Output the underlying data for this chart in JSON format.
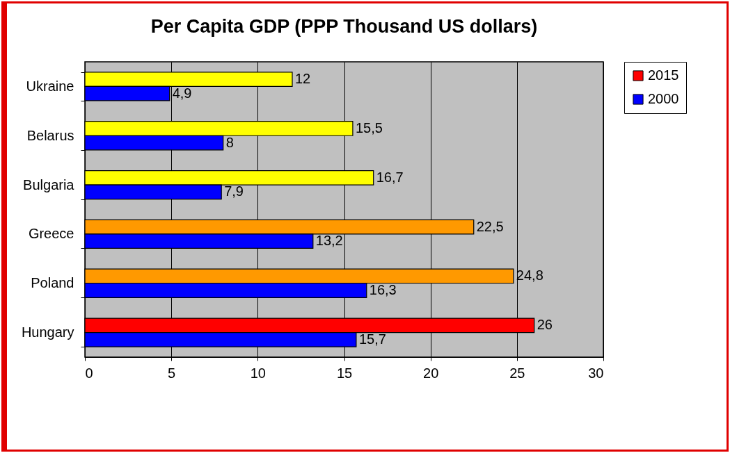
{
  "chart_data": {
    "type": "bar",
    "orientation": "horizontal",
    "title": "Per Capita GDP (PPP Thousand US dollars)",
    "categories": [
      "Ukraine",
      "Belarus",
      "Bulgaria",
      "Greece",
      "Poland",
      "Hungary"
    ],
    "series": [
      {
        "name": "2015",
        "color": "#ff0000",
        "colors": [
          "#ffff00",
          "#ffff00",
          "#ffff00",
          "#ff9900",
          "#ff9900",
          "#ff0000"
        ],
        "values": [
          12,
          15.5,
          16.7,
          22.5,
          24.8,
          26
        ],
        "value_labels": [
          "12",
          "15,5",
          "16,7",
          "22,5",
          "24,8",
          "26"
        ]
      },
      {
        "name": "2000",
        "color": "#0000ff",
        "values": [
          4.9,
          8,
          7.9,
          13.2,
          16.3,
          15.7
        ],
        "value_labels": [
          "4,9",
          "8",
          "7,9",
          "13,2",
          "16,3",
          "15,7"
        ]
      }
    ],
    "xlim": [
      0,
      30
    ],
    "xticks": [
      0,
      5,
      10,
      15,
      20,
      25,
      30
    ],
    "grid": "x",
    "legend": "right"
  }
}
